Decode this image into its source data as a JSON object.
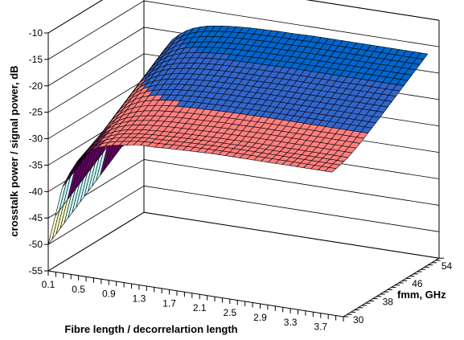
{
  "chart_data": {
    "type": "surface",
    "title": "",
    "xlabel": "Fibre length / decorrelartion length",
    "ylabel": "fmm, GHz",
    "zlabel": "crosstalk power / signal power, dB",
    "x_tick_labels": [
      "0.1",
      "0.5",
      "0.9",
      "1.3",
      "1.7",
      "2.1",
      "2.5",
      "2.9",
      "3.3",
      "3.7"
    ],
    "y_tick_labels": [
      "30",
      "38",
      "46",
      "54"
    ],
    "z_tick_labels": [
      "-10",
      "-15",
      "-20",
      "-25",
      "-30",
      "-35",
      "-40",
      "-45",
      "-50",
      "-55"
    ],
    "xlim": [
      0.1,
      4.0
    ],
    "ylim": [
      30,
      56
    ],
    "zlim": [
      -55,
      -10
    ],
    "grid": true,
    "legend": "none",
    "color_bands": [
      {
        "range": [
          -55,
          -45
        ],
        "color": "#FFFFCC"
      },
      {
        "range": [
          -45,
          -40
        ],
        "color": "#CCFFFF"
      },
      {
        "range": [
          -40,
          -35
        ],
        "color": "#660066"
      },
      {
        "range": [
          -35,
          -30
        ],
        "color": "#993366"
      },
      {
        "range": [
          -30,
          -25
        ],
        "color": "#FF8080"
      },
      {
        "range": [
          -25,
          -20
        ],
        "color": "#3366CC"
      },
      {
        "range": [
          -20,
          -15
        ],
        "color": "#0066CC"
      }
    ],
    "surface_model": {
      "description": "crosstalk(dB) vs fibre length x and fmm y",
      "x_samples": [
        0.1,
        0.3,
        0.5,
        0.7,
        0.9,
        1.1,
        1.3,
        1.5,
        1.7,
        1.9,
        2.1,
        2.3,
        2.5,
        2.7,
        2.9,
        3.1,
        3.3,
        3.5,
        3.7,
        3.9
      ],
      "y_samples": [
        30,
        34,
        38,
        42,
        46,
        50,
        54,
        56
      ],
      "values": [
        [
          -50,
          -38,
          -33,
          -30.5,
          -29.5,
          -29,
          -28.5,
          -28.5,
          -28.3,
          -28.2,
          -28.1,
          -28,
          -28,
          -28,
          -28,
          -28,
          -28,
          -28,
          -28,
          -28
        ],
        [
          -48,
          -36,
          -31.5,
          -29.5,
          -28.5,
          -28,
          -27.8,
          -27.6,
          -27.5,
          -27.4,
          -27.3,
          -27.3,
          -27.2,
          -27.2,
          -27.2,
          -27.2,
          -27.2,
          -27.2,
          -27.2,
          -27.2
        ],
        [
          -46,
          -34,
          -30,
          -28,
          -27,
          -26.5,
          -26.2,
          -26,
          -25.9,
          -25.8,
          -25.7,
          -25.7,
          -25.6,
          -25.6,
          -25.6,
          -25.6,
          -25.6,
          -25.6,
          -25.6,
          -25.6
        ],
        [
          -44,
          -32,
          -28,
          -26,
          -25,
          -24.5,
          -24.2,
          -24,
          -23.9,
          -23.8,
          -23.8,
          -23.7,
          -23.7,
          -23.7,
          -23.7,
          -23.7,
          -23.7,
          -23.7,
          -23.7,
          -23.7
        ],
        [
          -42,
          -30,
          -26,
          -24,
          -23,
          -22.5,
          -22.2,
          -22,
          -21.9,
          -21.8,
          -21.8,
          -21.7,
          -21.7,
          -21.7,
          -21.7,
          -21.7,
          -21.7,
          -21.7,
          -21.7,
          -21.7
        ],
        [
          -40,
          -28,
          -24,
          -22,
          -21,
          -20.5,
          -20.2,
          -20,
          -19.9,
          -19.8,
          -19.8,
          -19.7,
          -19.7,
          -19.7,
          -19.7,
          -19.7,
          -19.7,
          -19.7,
          -19.7,
          -19.7
        ],
        [
          -38,
          -26,
          -22,
          -20,
          -19,
          -18.5,
          -18.2,
          -18,
          -17.9,
          -17.8,
          -17.8,
          -17.7,
          -17.7,
          -17.7,
          -17.7,
          -17.7,
          -17.7,
          -17.7,
          -17.7,
          -17.7
        ],
        [
          -37,
          -25,
          -21,
          -19,
          -18,
          -17.5,
          -17.2,
          -17,
          -16.9,
          -16.8,
          -16.8,
          -16.7,
          -16.7,
          -16.7,
          -16.7,
          -16.7,
          -16.7,
          -16.7,
          -16.7,
          -16.7
        ]
      ]
    }
  }
}
